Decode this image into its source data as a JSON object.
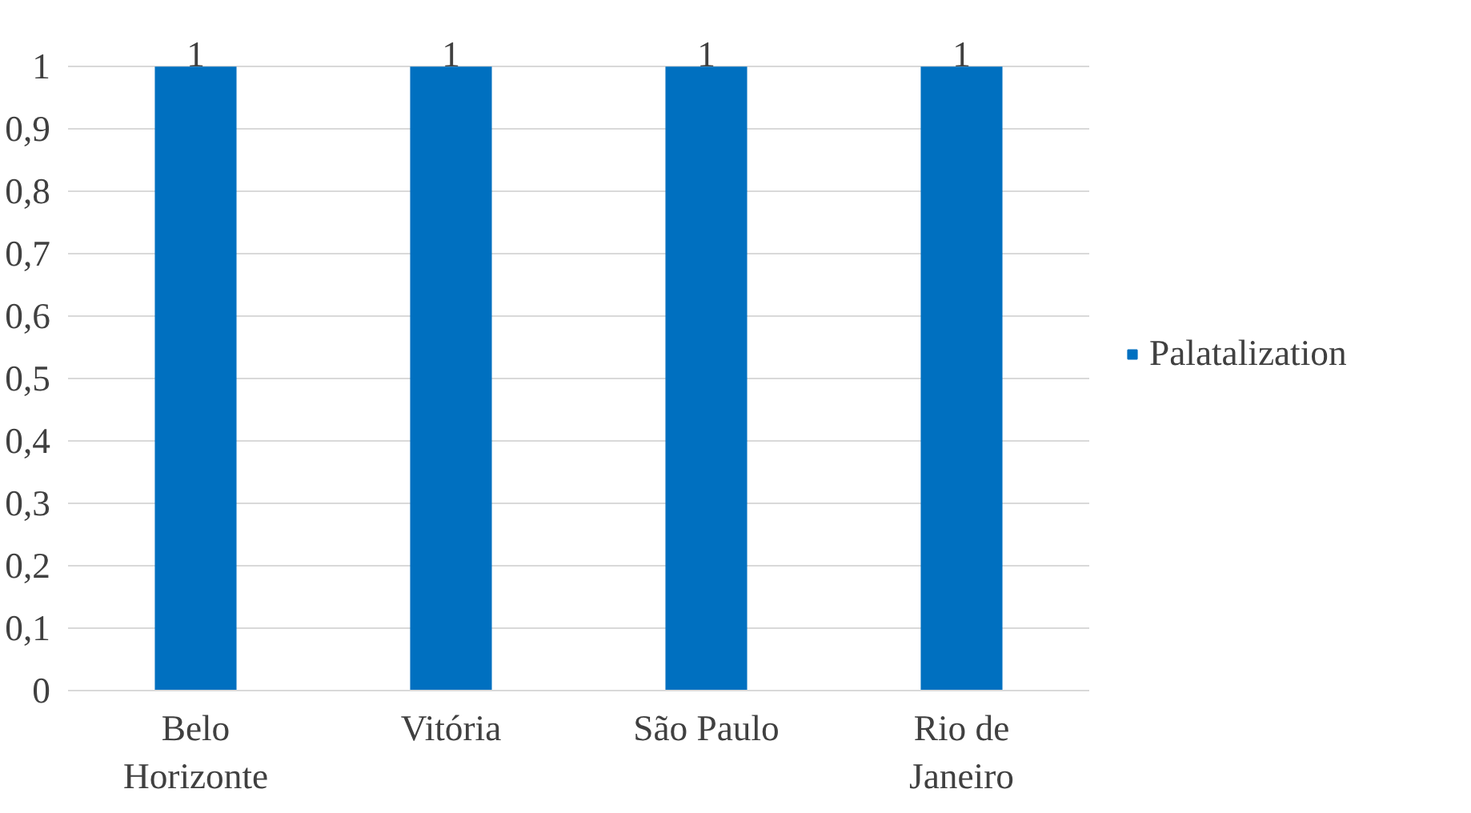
{
  "chart_data": {
    "type": "bar",
    "categories": [
      "Belo Horizonte",
      "Vitória",
      "São Paulo",
      "Rio de Janeiro"
    ],
    "series": [
      {
        "name": "Palatalization",
        "color": "#0070c0",
        "values": [
          1,
          1,
          1,
          1
        ]
      }
    ],
    "ylim": [
      0,
      1
    ],
    "yticks": [
      0,
      {
        "value": 0.1,
        "label": "0,1"
      },
      {
        "value": 0.2,
        "label": "0,2"
      },
      {
        "value": 0.3,
        "label": "0,3"
      },
      {
        "value": 0.4,
        "label": "0,4"
      },
      {
        "value": 0.5,
        "label": "0,5"
      },
      {
        "value": 0.6,
        "label": "0,6"
      },
      {
        "value": 0.7,
        "label": "0,7"
      },
      {
        "value": 0.8,
        "label": "0,8"
      },
      {
        "value": 0.9,
        "label": "0,9"
      },
      1
    ],
    "grid": "y",
    "legend": "right",
    "data_labels": true
  }
}
